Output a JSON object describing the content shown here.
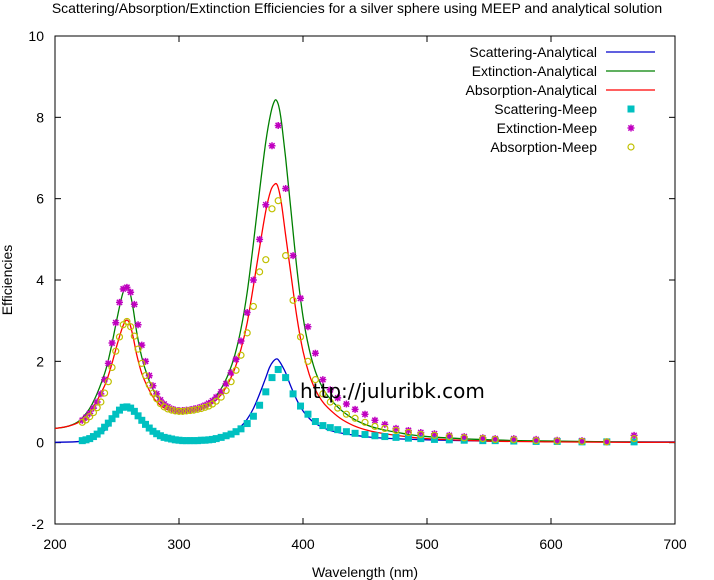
{
  "chart_data": {
    "type": "line",
    "title": "Scattering/Absorption/Extinction Efficiencies for a silver sphere using MEEP and analytical solution",
    "xlabel": "Wavelength (nm)",
    "ylabel": "Efficiencies",
    "xlim": [
      200,
      700
    ],
    "ylim": [
      -2,
      10
    ],
    "xticks": [
      "200",
      "300",
      "400",
      "500",
      "600",
      "700"
    ],
    "yticks": [
      "-2",
      "0",
      "2",
      "4",
      "6",
      "8",
      "10"
    ],
    "grid": false,
    "legend_position": "top-right",
    "watermark": "http://juluribk.com",
    "series": [
      {
        "name": "Scattering-Analytical",
        "style": "line",
        "color": "#0000cc",
        "x": [
          200,
          220,
          230,
          240,
          245,
          250,
          255,
          258,
          262,
          266,
          270,
          275,
          280,
          285,
          290,
          295,
          300,
          305,
          310,
          315,
          320,
          325,
          330,
          335,
          340,
          345,
          350,
          355,
          360,
          365,
          370,
          373,
          376,
          379,
          381,
          383,
          386,
          390,
          395,
          400,
          405,
          410,
          420,
          430,
          440,
          450,
          460,
          480,
          500,
          550,
          600,
          650,
          700
        ],
        "y": [
          0.01,
          0.03,
          0.12,
          0.3,
          0.5,
          0.72,
          0.86,
          0.88,
          0.82,
          0.7,
          0.55,
          0.38,
          0.25,
          0.16,
          0.1,
          0.07,
          0.05,
          0.04,
          0.04,
          0.04,
          0.05,
          0.07,
          0.1,
          0.14,
          0.2,
          0.28,
          0.4,
          0.58,
          0.84,
          1.2,
          1.6,
          1.85,
          2.0,
          2.06,
          2.0,
          1.9,
          1.72,
          1.4,
          1.05,
          0.78,
          0.6,
          0.47,
          0.32,
          0.24,
          0.19,
          0.15,
          0.12,
          0.09,
          0.07,
          0.04,
          0.03,
          0.02,
          0.02
        ]
      },
      {
        "name": "Extinction-Analytical",
        "style": "line",
        "color": "#008000",
        "x": [
          200,
          210,
          220,
          230,
          240,
          245,
          250,
          254,
          257,
          260,
          263,
          266,
          270,
          275,
          280,
          285,
          290,
          295,
          300,
          305,
          310,
          315,
          320,
          325,
          330,
          335,
          340,
          345,
          350,
          355,
          360,
          365,
          370,
          374,
          377,
          379,
          381,
          383,
          386,
          390,
          395,
          400,
          405,
          410,
          415,
          420,
          430,
          440,
          450,
          460,
          480,
          500,
          550,
          600,
          650,
          700
        ],
        "y": [
          0.35,
          0.4,
          0.55,
          0.95,
          1.7,
          2.3,
          3.05,
          3.6,
          3.85,
          3.75,
          3.3,
          2.7,
          2.1,
          1.6,
          1.25,
          1.02,
          0.88,
          0.8,
          0.78,
          0.78,
          0.8,
          0.84,
          0.9,
          1.0,
          1.15,
          1.38,
          1.7,
          2.15,
          2.8,
          3.7,
          4.9,
          6.2,
          7.4,
          8.1,
          8.4,
          8.4,
          8.2,
          7.8,
          7.0,
          5.8,
          4.3,
          3.1,
          2.3,
          1.75,
          1.4,
          1.15,
          0.82,
          0.6,
          0.45,
          0.35,
          0.23,
          0.15,
          0.07,
          0.04,
          0.02,
          0.01
        ]
      },
      {
        "name": "Absorption-Analytical",
        "style": "line",
        "color": "#ff0000",
        "x": [
          200,
          210,
          220,
          230,
          240,
          245,
          250,
          254,
          257,
          260,
          263,
          266,
          270,
          275,
          280,
          285,
          290,
          295,
          300,
          305,
          310,
          315,
          320,
          325,
          330,
          335,
          340,
          345,
          350,
          355,
          360,
          365,
          370,
          374,
          377,
          379,
          381,
          383,
          386,
          390,
          395,
          400,
          405,
          410,
          415,
          420,
          430,
          440,
          450,
          460,
          480,
          500,
          550,
          600,
          650,
          700
        ],
        "y": [
          0.35,
          0.4,
          0.52,
          0.85,
          1.4,
          1.85,
          2.4,
          2.8,
          3.0,
          2.95,
          2.6,
          2.15,
          1.7,
          1.35,
          1.08,
          0.92,
          0.82,
          0.77,
          0.76,
          0.76,
          0.77,
          0.8,
          0.85,
          0.93,
          1.05,
          1.22,
          1.48,
          1.82,
          2.3,
          2.95,
          3.85,
          4.8,
          5.7,
          6.2,
          6.35,
          6.35,
          6.15,
          5.8,
          5.1,
          4.2,
          3.1,
          2.25,
          1.68,
          1.3,
          1.04,
          0.86,
          0.6,
          0.43,
          0.32,
          0.25,
          0.16,
          0.1,
          0.04,
          0.02,
          0.01,
          0.01
        ]
      },
      {
        "name": "Scattering-Meep",
        "style": "marker",
        "marker": "square",
        "color": "#00c0c0",
        "x": [
          222,
          225,
          228,
          231,
          234,
          237,
          240,
          243,
          246,
          249,
          252,
          255,
          258,
          261,
          264,
          267,
          270,
          273,
          276,
          279,
          282,
          285,
          288,
          291,
          294,
          297,
          300,
          303,
          306,
          309,
          312,
          315,
          318,
          321,
          324,
          327,
          330,
          334,
          338,
          342,
          346,
          350,
          355,
          360,
          365,
          370,
          375,
          380,
          386,
          392,
          398,
          404,
          410,
          416,
          422,
          428,
          435,
          442,
          450,
          458,
          466,
          475,
          485,
          495,
          506,
          518,
          530,
          545,
          555,
          570,
          588,
          605,
          625,
          645,
          667
        ],
        "y": [
          0.05,
          0.07,
          0.1,
          0.15,
          0.21,
          0.29,
          0.38,
          0.48,
          0.59,
          0.7,
          0.8,
          0.87,
          0.88,
          0.85,
          0.77,
          0.66,
          0.55,
          0.45,
          0.36,
          0.28,
          0.22,
          0.17,
          0.13,
          0.11,
          0.09,
          0.07,
          0.06,
          0.05,
          0.05,
          0.05,
          0.05,
          0.05,
          0.06,
          0.06,
          0.07,
          0.08,
          0.1,
          0.13,
          0.17,
          0.21,
          0.27,
          0.34,
          0.47,
          0.65,
          0.92,
          1.25,
          1.6,
          1.8,
          1.6,
          1.2,
          0.9,
          0.7,
          0.52,
          0.42,
          0.37,
          0.32,
          0.27,
          0.23,
          0.2,
          0.17,
          0.15,
          0.13,
          0.11,
          0.1,
          0.08,
          0.07,
          0.06,
          0.05,
          0.05,
          0.04,
          0.03,
          0.03,
          0.02,
          0.02,
          0.02
        ]
      },
      {
        "name": "Extinction-Meep",
        "style": "marker",
        "marker": "star",
        "color": "#c000c0",
        "x": [
          222,
          225,
          228,
          231,
          234,
          237,
          240,
          243,
          246,
          249,
          252,
          255,
          258,
          261,
          264,
          267,
          270,
          273,
          276,
          279,
          282,
          285,
          288,
          291,
          294,
          297,
          300,
          303,
          306,
          309,
          312,
          315,
          318,
          321,
          324,
          327,
          330,
          334,
          338,
          342,
          346,
          350,
          355,
          360,
          365,
          370,
          375,
          380,
          386,
          392,
          398,
          404,
          410,
          416,
          422,
          428,
          435,
          442,
          450,
          458,
          466,
          475,
          485,
          495,
          506,
          518,
          530,
          545,
          555,
          570,
          588,
          605,
          625,
          645,
          667
        ],
        "y": [
          0.55,
          0.62,
          0.72,
          0.85,
          1.0,
          1.2,
          1.55,
          1.95,
          2.45,
          2.95,
          3.45,
          3.78,
          3.82,
          3.7,
          3.4,
          2.9,
          2.4,
          2.0,
          1.65,
          1.4,
          1.2,
          1.05,
          0.95,
          0.88,
          0.83,
          0.8,
          0.79,
          0.79,
          0.8,
          0.81,
          0.83,
          0.85,
          0.88,
          0.92,
          0.97,
          1.03,
          1.12,
          1.25,
          1.45,
          1.72,
          2.05,
          2.5,
          3.2,
          4.0,
          5.0,
          5.85,
          7.3,
          7.8,
          6.25,
          4.6,
          3.55,
          2.85,
          2.2,
          1.55,
          1.3,
          1.1,
          0.95,
          0.82,
          0.7,
          0.55,
          0.45,
          0.35,
          0.3,
          0.25,
          0.22,
          0.18,
          0.15,
          0.12,
          0.1,
          0.1,
          0.08,
          0.06,
          0.05,
          0.02,
          0.18
        ]
      },
      {
        "name": "Absorption-Meep",
        "style": "marker",
        "marker": "circle",
        "color": "#c0c000",
        "x": [
          222,
          225,
          228,
          231,
          234,
          237,
          240,
          243,
          246,
          249,
          252,
          255,
          258,
          261,
          264,
          267,
          270,
          273,
          276,
          279,
          282,
          285,
          288,
          291,
          294,
          297,
          300,
          303,
          306,
          309,
          312,
          315,
          318,
          321,
          324,
          327,
          330,
          334,
          338,
          342,
          346,
          350,
          355,
          360,
          365,
          370,
          375,
          380,
          386,
          392,
          398,
          404,
          410,
          416,
          422,
          428,
          435,
          442,
          450,
          458,
          466,
          475,
          485,
          495,
          506,
          518,
          530,
          545,
          555,
          570,
          588,
          605,
          625,
          645,
          667
        ],
        "y": [
          0.5,
          0.56,
          0.64,
          0.74,
          0.86,
          1.0,
          1.22,
          1.5,
          1.85,
          2.25,
          2.6,
          2.9,
          2.98,
          2.85,
          2.62,
          2.3,
          1.95,
          1.65,
          1.42,
          1.22,
          1.08,
          0.96,
          0.88,
          0.83,
          0.8,
          0.78,
          0.77,
          0.77,
          0.78,
          0.79,
          0.8,
          0.82,
          0.84,
          0.87,
          0.9,
          0.95,
          1.02,
          1.12,
          1.28,
          1.5,
          1.78,
          2.15,
          2.7,
          3.35,
          4.2,
          4.5,
          5.75,
          5.95,
          4.6,
          3.5,
          2.6,
          2.0,
          1.55,
          1.2,
          1.0,
          0.85,
          0.7,
          0.6,
          0.5,
          0.4,
          0.35,
          0.3,
          0.25,
          0.2,
          0.18,
          0.15,
          0.12,
          0.1,
          0.08,
          0.07,
          0.05,
          0.04,
          0.03,
          0.02,
          0.1
        ]
      }
    ]
  }
}
